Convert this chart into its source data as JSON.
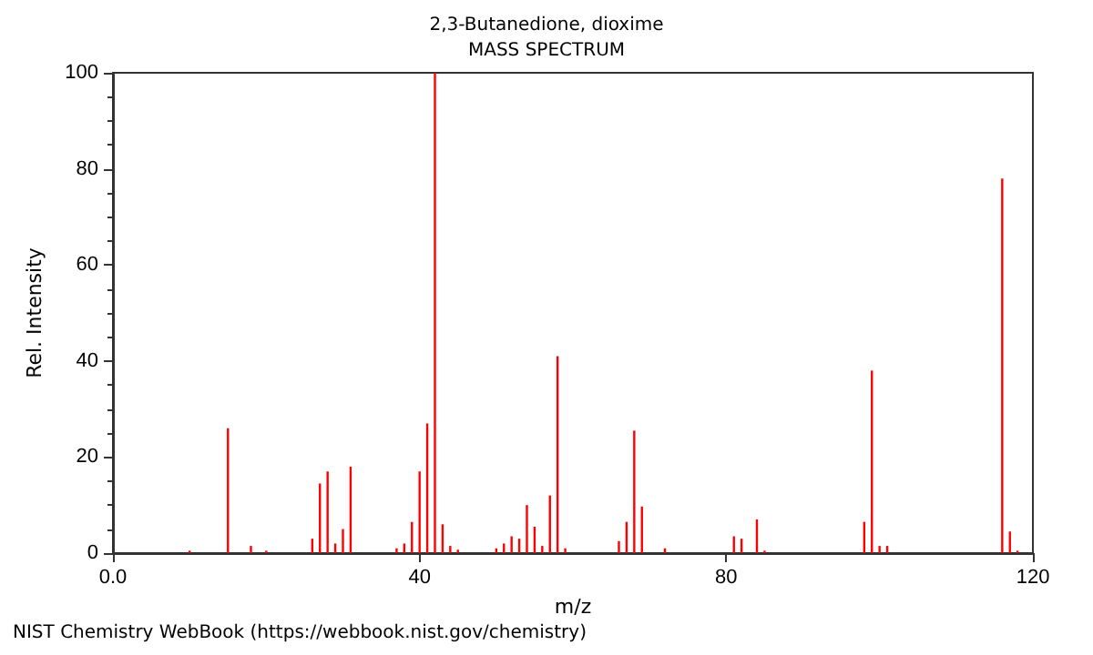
{
  "chart_data": {
    "type": "bar",
    "title": "2,3-Butanedione, dioxime",
    "subtitle": "MASS SPECTRUM",
    "xlabel": "m/z",
    "ylabel": "Rel. Intensity",
    "x": [
      10,
      15,
      18,
      20,
      26,
      27,
      28,
      29,
      30,
      31,
      37,
      38,
      39,
      40,
      41,
      42,
      43,
      44,
      45,
      50,
      51,
      52,
      53,
      54,
      55,
      56,
      57,
      58,
      59,
      66,
      67,
      68,
      69,
      72,
      81,
      82,
      84,
      85,
      98,
      99,
      100,
      101,
      116,
      117,
      118
    ],
    "series": [
      {
        "color": "#ff0000",
        "values": [
          0.5,
          26,
          1.5,
          0.5,
          3,
          14.5,
          17,
          2,
          5,
          18,
          1,
          2,
          6.5,
          17,
          27,
          100,
          6,
          1.5,
          0.7,
          1,
          2,
          3.5,
          3,
          10,
          5.5,
          1.5,
          12,
          41,
          1,
          2.5,
          6.5,
          25.5,
          9.7,
          1,
          3.5,
          3,
          7,
          0.5,
          6.5,
          38,
          1.5,
          1.5,
          78,
          4.5,
          0.5
        ]
      }
    ],
    "xlim": [
      0,
      120
    ],
    "xticks": [
      {
        "value": 0,
        "label": "0.0"
      },
      40,
      80,
      120
    ],
    "ylim": [
      0,
      100
    ],
    "yticks": [
      0,
      20,
      40,
      60,
      80,
      100
    ],
    "grid": false,
    "annotations": [
      "NIST Chemistry WebBook (https://webbook.nist.gov/chemistry)"
    ]
  }
}
